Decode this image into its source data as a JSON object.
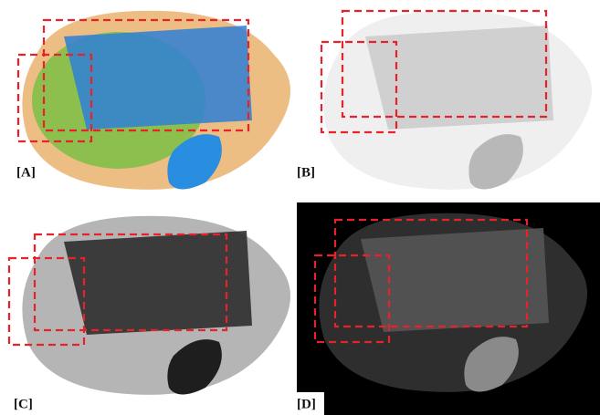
{
  "panels": [
    {
      "label": "[A]"
    },
    {
      "label": "[B]"
    },
    {
      "label": "[C]"
    },
    {
      "label": "[D]"
    }
  ]
}
